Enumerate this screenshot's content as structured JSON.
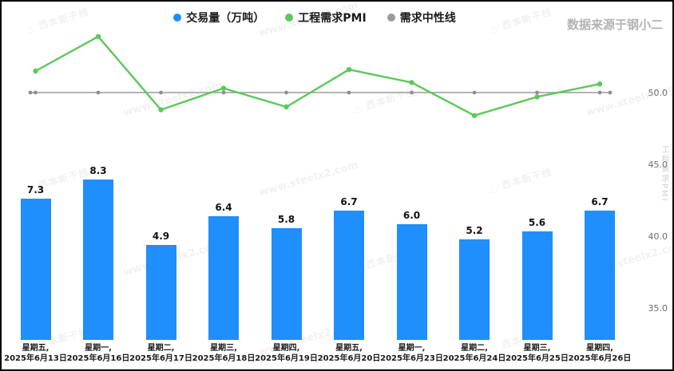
{
  "source_label": "数据来源于钢小二",
  "legend": [
    {
      "label": "交易量（万吨）",
      "color": "#1e8ffd"
    },
    {
      "label": "工程需求PMI",
      "color": "#5bc85b"
    },
    {
      "label": "需求中性线",
      "color": "#9a9a9a"
    }
  ],
  "watermark": {
    "url_text": "www.steelx2.com",
    "logo_text": "△ 西本新干线"
  },
  "right_axis": {
    "title": "工程需求PMI",
    "ticks": [
      {
        "label": "50.0",
        "value": 50
      },
      {
        "label": "45.0",
        "value": 45
      },
      {
        "label": "40.0",
        "value": 40
      },
      {
        "label": "35.0",
        "value": 35
      }
    ]
  },
  "chart_data": {
    "type": "bar+line",
    "title": "",
    "legend_position": "top-center",
    "grid": "off",
    "categories": [
      {
        "weekday": "星期五,",
        "date": "2025年6月13日"
      },
      {
        "weekday": "星期一,",
        "date": "2025年6月16日"
      },
      {
        "weekday": "星期二,",
        "date": "2025年6月17日"
      },
      {
        "weekday": "星期三,",
        "date": "2025年6月18日"
      },
      {
        "weekday": "星期四,",
        "date": "2025年6月19日"
      },
      {
        "weekday": "星期五,",
        "date": "2025年6月20日"
      },
      {
        "weekday": "星期一,",
        "date": "2025年6月23日"
      },
      {
        "weekday": "星期二,",
        "date": "2025年6月24日"
      },
      {
        "weekday": "星期三,",
        "date": "2025年6月25日"
      },
      {
        "weekday": "星期四,",
        "date": "2025年6月26日"
      }
    ],
    "series": [
      {
        "name": "交易量（万吨）",
        "type": "bar",
        "axis": "left-hidden",
        "color": "#1e8ffd",
        "values": [
          7.3,
          8.3,
          4.9,
          6.4,
          5.8,
          6.7,
          6.0,
          5.2,
          5.6,
          6.7
        ]
      },
      {
        "name": "工程需求PMI",
        "type": "line",
        "axis": "right",
        "color": "#5bc85b",
        "values": [
          51.5,
          53.9,
          48.8,
          50.3,
          49.0,
          51.6,
          50.7,
          48.4,
          49.7,
          50.6
        ]
      },
      {
        "name": "需求中性线",
        "type": "line",
        "axis": "right",
        "color": "#9a9a9a",
        "constant": 50
      }
    ],
    "right_axis_ticks": [
      50.0,
      45.0,
      40.0,
      35.0
    ]
  }
}
